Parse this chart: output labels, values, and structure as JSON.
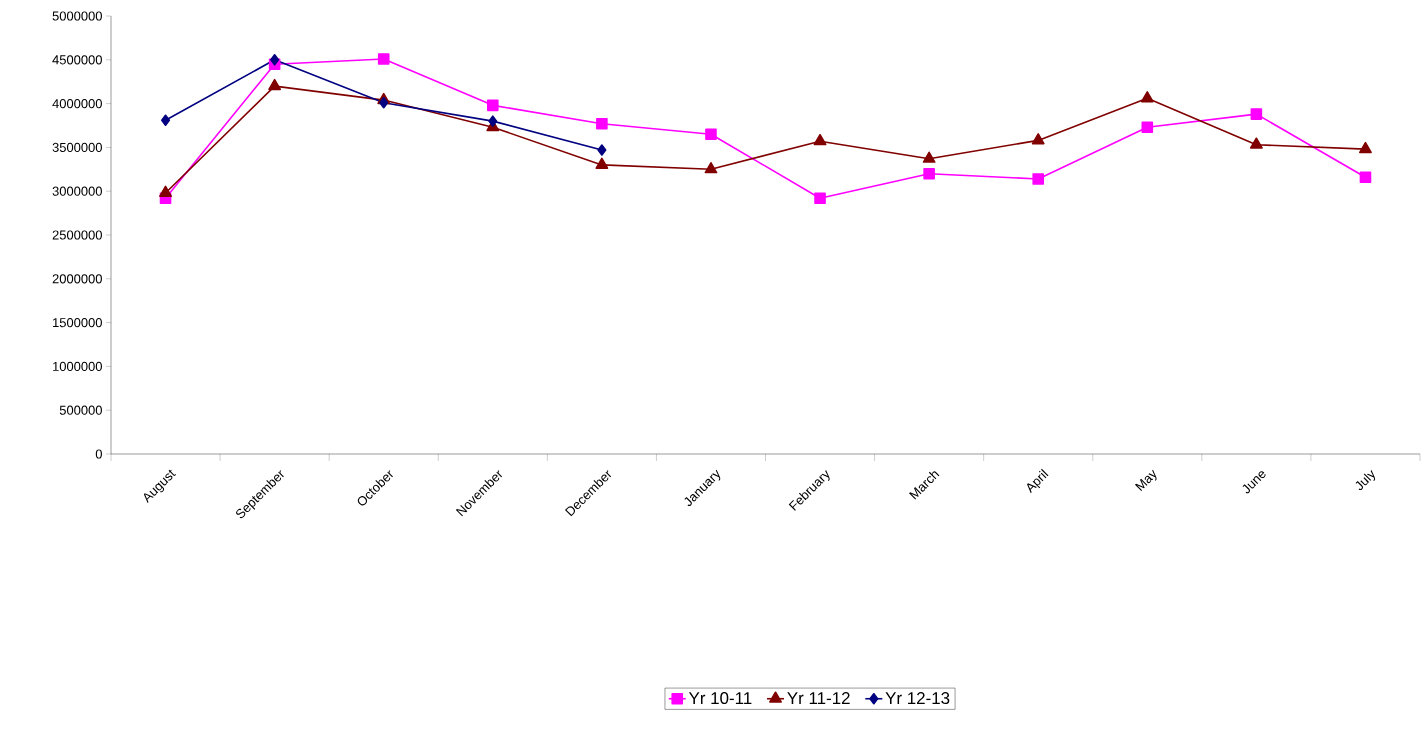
{
  "chart_data": {
    "type": "line",
    "categories": [
      "August",
      "September",
      "October",
      "November",
      "December",
      "January",
      "February",
      "March",
      "April",
      "May",
      "June",
      "July"
    ],
    "series": [
      {
        "name": "Yr 10-11",
        "color": "#ff00ff",
        "marker": "square",
        "values": [
          2920000,
          4450000,
          4510000,
          3980000,
          3770000,
          3650000,
          2920000,
          3200000,
          3140000,
          3730000,
          3880000,
          3160000
        ]
      },
      {
        "name": "Yr 11-12",
        "color": "#800000",
        "marker": "triangle",
        "values": [
          2980000,
          4200000,
          4040000,
          3730000,
          3300000,
          3250000,
          3570000,
          3370000,
          3580000,
          4060000,
          3530000,
          3480000
        ]
      },
      {
        "name": "Yr 12-13",
        "color": "#000080",
        "marker": "diamond",
        "values": [
          3810000,
          4500000,
          4010000,
          3800000,
          3470000,
          null,
          null,
          null,
          null,
          null,
          null,
          null
        ]
      }
    ],
    "ylim": [
      0,
      5000000
    ],
    "yticks": [
      0,
      500000,
      1000000,
      1500000,
      2000000,
      2500000,
      3000000,
      3500000,
      4000000,
      4500000,
      5000000
    ],
    "grid": false,
    "legend": "bottom"
  }
}
